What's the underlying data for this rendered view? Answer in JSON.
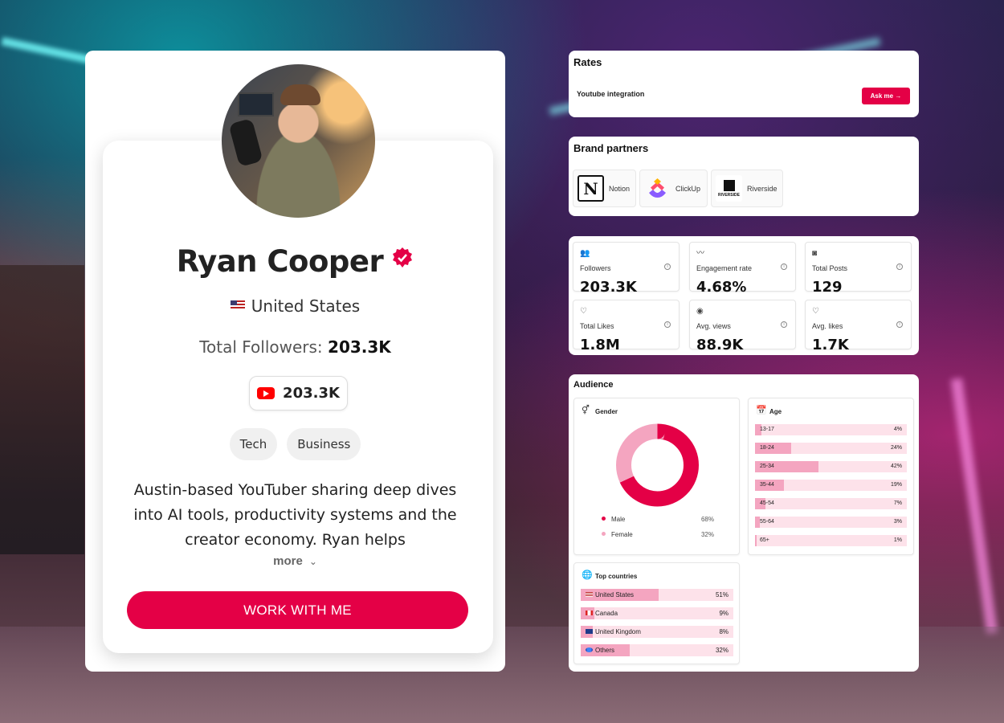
{
  "profile": {
    "name": "Ryan Cooper",
    "country": "United States",
    "total_followers_label": "Total Followers:",
    "total_followers_value": "203.3K",
    "youtube_followers": "203.3K",
    "tags": [
      "Tech",
      "Business"
    ],
    "bio": "Austin-based YouTuber sharing deep dives into AI tools, productivity systems and the creator economy. Ryan helps professionals…",
    "more_label": "more",
    "cta_label": "WORK WITH ME"
  },
  "rates": {
    "title": "Rates",
    "item_label": "Youtube integration",
    "button_label": "Ask me"
  },
  "brand_partners": {
    "title": "Brand partners",
    "items": [
      {
        "name": "Notion",
        "icon": "notion-logo"
      },
      {
        "name": "ClickUp",
        "icon": "clickup-logo"
      },
      {
        "name": "Riverside",
        "icon": "riverside-logo",
        "logo_text": "RIVERSIDE"
      }
    ]
  },
  "stats": [
    {
      "label": "Followers",
      "value": "203.3K",
      "icon": "users-icon"
    },
    {
      "label": "Engagement rate",
      "value": "4.68%",
      "icon": "activity-icon"
    },
    {
      "label": "Total Posts",
      "value": "129",
      "icon": "camera-icon"
    },
    {
      "label": "Total Likes",
      "value": "1.8M",
      "icon": "heart-icon"
    },
    {
      "label": "Avg. views",
      "value": "88.9K",
      "icon": "eye-icon"
    },
    {
      "label": "Avg. likes",
      "value": "1.7K",
      "icon": "heart-icon"
    }
  ],
  "audience": {
    "title": "Audience",
    "gender": {
      "title": "Gender",
      "items": [
        {
          "label": "Male",
          "pct": "68%",
          "value": 68,
          "color": "#e40046"
        },
        {
          "label": "Female",
          "pct": "32%",
          "value": 32,
          "color": "#f4a5c0"
        }
      ]
    },
    "age": {
      "title": "Age",
      "items": [
        {
          "label": "13-17",
          "pct": "4%",
          "value": 4
        },
        {
          "label": "18-24",
          "pct": "24%",
          "value": 24
        },
        {
          "label": "25-34",
          "pct": "42%",
          "value": 42
        },
        {
          "label": "35-44",
          "pct": "19%",
          "value": 19
        },
        {
          "label": "45-54",
          "pct": "7%",
          "value": 7
        },
        {
          "label": "55-64",
          "pct": "3%",
          "value": 3
        },
        {
          "label": "65+",
          "pct": "1%",
          "value": 1
        }
      ]
    },
    "countries": {
      "title": "Top countries",
      "items": [
        {
          "label": "United States",
          "pct": "51%",
          "value": 51
        },
        {
          "label": "Canada",
          "pct": "9%",
          "value": 9
        },
        {
          "label": "United Kingdom",
          "pct": "8%",
          "value": 8
        },
        {
          "label": "Others",
          "pct": "32%",
          "value": 32
        }
      ]
    }
  },
  "colors": {
    "accent": "#e40046",
    "accent_light": "#f4a5c0",
    "bar_bg": "#fde2ea"
  }
}
